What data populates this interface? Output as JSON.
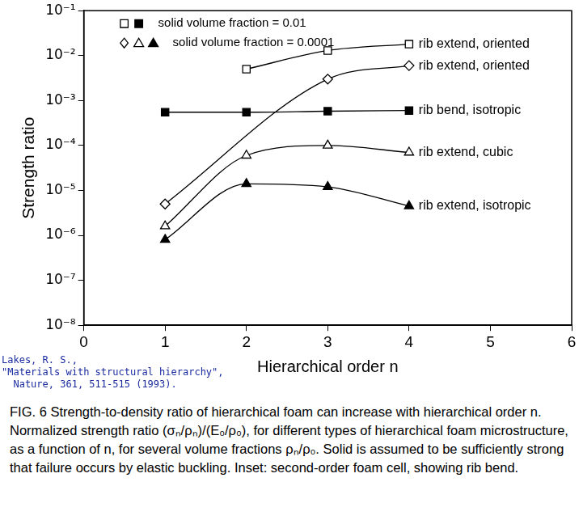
{
  "chart_data": {
    "type": "line",
    "x_label": "Hierarchical order n",
    "y_label": "Strength ratio",
    "xlim": [
      0,
      6
    ],
    "xticks": [
      0,
      1,
      2,
      3,
      4,
      5,
      6
    ],
    "ylim": [
      1e-08,
      0.1
    ],
    "yticks": [
      {
        "value": 1e-08,
        "label": "10⁻⁸"
      },
      {
        "value": 1e-07,
        "label": "10⁻⁷"
      },
      {
        "value": 1e-06,
        "label": "10⁻⁶"
      },
      {
        "value": 1e-05,
        "label": "10⁻⁵"
      },
      {
        "value": 0.0001,
        "label": "10⁻⁴"
      },
      {
        "value": 0.001,
        "label": "10⁻³"
      },
      {
        "value": 0.01,
        "label": "10⁻²"
      },
      {
        "value": 0.1,
        "label": "10⁻¹"
      }
    ],
    "log": "y",
    "grid": false,
    "legend": "top-left",
    "legend_entries": [
      {
        "markers": [
          "square-open",
          "square"
        ],
        "text": "solid volume fraction = 0.01"
      },
      {
        "markers": [
          "diamond-open",
          "triangle-open",
          "triangle"
        ],
        "text": "solid volume fraction = 0.0001"
      }
    ],
    "series": [
      {
        "name": "rib extend, oriented",
        "color": "#000000",
        "marker": "square-open",
        "line_style": "solid",
        "x": [
          2,
          3,
          4
        ],
        "values": [
          0.005,
          0.013,
          0.018
        ]
      },
      {
        "name": "rib extend, oriented",
        "color": "#000000",
        "marker": "diamond-open",
        "line_style": "solid",
        "x": [
          1,
          3,
          4
        ],
        "values": [
          5e-06,
          0.003,
          0.006
        ]
      },
      {
        "name": "rib bend, isotropic",
        "color": "#000000",
        "marker": "square",
        "line_style": "solid",
        "x": [
          1,
          2,
          3,
          4
        ],
        "values": [
          0.00055,
          0.00055,
          0.00058,
          0.0006
        ]
      },
      {
        "name": "rib extend, cubic",
        "color": "#000000",
        "marker": "triangle-open",
        "line_style": "solid",
        "x": [
          1,
          2,
          3,
          4
        ],
        "values": [
          1.6e-06,
          6e-05,
          0.0001,
          7e-05
        ]
      },
      {
        "name": "rib extend, isotropic",
        "color": "#000000",
        "marker": "triangle",
        "line_style": "solid",
        "x": [
          1,
          2,
          3,
          4
        ],
        "values": [
          8e-07,
          1.4e-05,
          1.2e-05,
          4.5e-06
        ]
      }
    ],
    "citation": [
      "Lakes, R. S.,",
      "\"Materials with structural hierarchy\",",
      "  Nature, 361, 511-515 (1993)."
    ],
    "caption": "FIG. 6 Strength-to-density ratio of hierarchical foam can increase with hierarchical order n. Normalized strength ratio (σₙ/ρₙ)/(E₀/ρ₀), for different types of hierarchical foam microstructure, as a function of n, for several volume fractions ρₙ/ρ₀. Solid is assumed to be sufficiently strong that failure occurs by elastic buckling. Inset: second-order foam cell, showing rib bend."
  }
}
